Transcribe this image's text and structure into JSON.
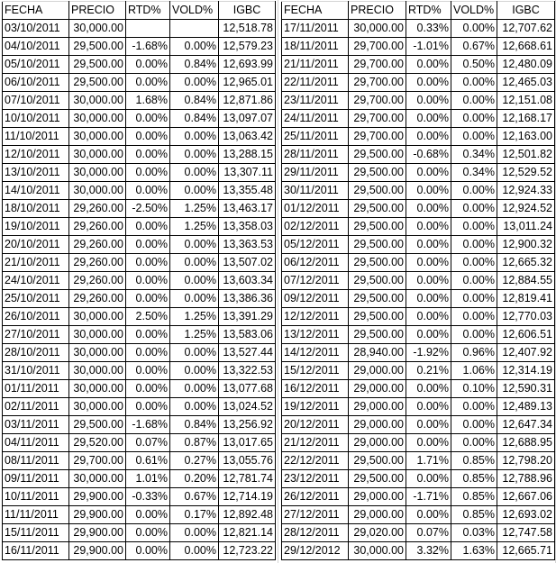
{
  "columns": [
    "FECHA",
    "PRECIO",
    "RTD%",
    "VOLD%",
    "IGBC"
  ],
  "tables": [
    {
      "rows": [
        [
          "03/10/2011",
          "30,000.00",
          "",
          "",
          "12,518.78"
        ],
        [
          "04/10/2011",
          "29,500.00",
          "-1.68%",
          "0.00%",
          "12,579.23"
        ],
        [
          "05/10/2011",
          "29,500.00",
          "0.00%",
          "0.84%",
          "12,693.99"
        ],
        [
          "06/10/2011",
          "29,500.00",
          "0.00%",
          "0.00%",
          "12,965.01"
        ],
        [
          "07/10/2011",
          "30,000.00",
          "1.68%",
          "0.84%",
          "12,871.86"
        ],
        [
          "10/10/2011",
          "30,000.00",
          "0.00%",
          "0.84%",
          "13,097.07"
        ],
        [
          "11/10/2011",
          "30,000.00",
          "0.00%",
          "0.00%",
          "13,063.42"
        ],
        [
          "12/10/2011",
          "30,000.00",
          "0.00%",
          "0.00%",
          "13,288.15"
        ],
        [
          "13/10/2011",
          "30,000.00",
          "0.00%",
          "0.00%",
          "13,307.11"
        ],
        [
          "14/10/2011",
          "30,000.00",
          "0.00%",
          "0.00%",
          "13,355.48"
        ],
        [
          "18/10/2011",
          "29,260.00",
          "-2.50%",
          "1.25%",
          "13,463.17"
        ],
        [
          "19/10/2011",
          "29,260.00",
          "0.00%",
          "1.25%",
          "13,358.03"
        ],
        [
          "20/10/2011",
          "29,260.00",
          "0.00%",
          "0.00%",
          "13,363.53"
        ],
        [
          "21/10/2011",
          "29,260.00",
          "0.00%",
          "0.00%",
          "13,507.02"
        ],
        [
          "24/10/2011",
          "29,260.00",
          "0.00%",
          "0.00%",
          "13,603.34"
        ],
        [
          "25/10/2011",
          "29,260.00",
          "0.00%",
          "0.00%",
          "13,386.36"
        ],
        [
          "26/10/2011",
          "30,000.00",
          "2.50%",
          "1.25%",
          "13,391.29"
        ],
        [
          "27/10/2011",
          "30,000.00",
          "0.00%",
          "1.25%",
          "13,583.06"
        ],
        [
          "28/10/2011",
          "30,000.00",
          "0.00%",
          "0.00%",
          "13,527.44"
        ],
        [
          "31/10/2011",
          "30,000.00",
          "0.00%",
          "0.00%",
          "13,322.53"
        ],
        [
          "01/11/2011",
          "30,000.00",
          "0.00%",
          "0.00%",
          "13,077.68"
        ],
        [
          "02/11/2011",
          "30,000.00",
          "0.00%",
          "0.00%",
          "13,024.52"
        ],
        [
          "03/11/2011",
          "29,500.00",
          "-1.68%",
          "0.84%",
          "13,256.92"
        ],
        [
          "04/11/2011",
          "29,520.00",
          "0.07%",
          "0.87%",
          "13,017.65"
        ],
        [
          "08/11/2011",
          "29,700.00",
          "0.61%",
          "0.27%",
          "13,055.76"
        ],
        [
          "09/11/2011",
          "30,000.00",
          "1.01%",
          "0.20%",
          "12,781.74"
        ],
        [
          "10/11/2011",
          "29,900.00",
          "-0.33%",
          "0.67%",
          "12,714.19"
        ],
        [
          "11/11/2011",
          "29,900.00",
          "0.00%",
          "0.17%",
          "12,892.48"
        ],
        [
          "15/11/2011",
          "29,900.00",
          "0.00%",
          "0.00%",
          "12,821.14"
        ],
        [
          "16/11/2011",
          "29,900.00",
          "0.00%",
          "0.00%",
          "12,723.22"
        ]
      ]
    },
    {
      "rows": [
        [
          "17/11/2011",
          "30,000.00",
          "0.33%",
          "0.00%",
          "12,707.62"
        ],
        [
          "18/11/2011",
          "29,700.00",
          "-1.01%",
          "0.67%",
          "12,668.61"
        ],
        [
          "21/11/2011",
          "29,700.00",
          "0.00%",
          "0.50%",
          "12,480.09"
        ],
        [
          "22/11/2011",
          "29,700.00",
          "0.00%",
          "0.00%",
          "12,465.03"
        ],
        [
          "23/11/2011",
          "29,700.00",
          "0.00%",
          "0.00%",
          "12,151.08"
        ],
        [
          "24/11/2011",
          "29,700.00",
          "0.00%",
          "0.00%",
          "12,168.17"
        ],
        [
          "25/11/2011",
          "29,700.00",
          "0.00%",
          "0.00%",
          "12,163.00"
        ],
        [
          "28/11/2011",
          "29,500.00",
          "-0.68%",
          "0.34%",
          "12,501.82"
        ],
        [
          "29/11/2011",
          "29,500.00",
          "0.00%",
          "0.34%",
          "12,529.52"
        ],
        [
          "30/11/2011",
          "29,500.00",
          "0.00%",
          "0.00%",
          "12,924.33"
        ],
        [
          "01/12/2011",
          "29,500.00",
          "0.00%",
          "0.00%",
          "12,924.52"
        ],
        [
          "02/12/2011",
          "29,500.00",
          "0.00%",
          "0.00%",
          "13,011.24"
        ],
        [
          "05/12/2011",
          "29,500.00",
          "0.00%",
          "0.00%",
          "12,900.32"
        ],
        [
          "06/12/2011",
          "29,500.00",
          "0.00%",
          "0.00%",
          "12,665.32"
        ],
        [
          "07/12/2011",
          "29,500.00",
          "0.00%",
          "0.00%",
          "12,884.55"
        ],
        [
          "09/12/2011",
          "29,500.00",
          "0.00%",
          "0.00%",
          "12,819.41"
        ],
        [
          "12/12/2011",
          "29,500.00",
          "0.00%",
          "0.00%",
          "12,770.03"
        ],
        [
          "13/12/2011",
          "29,500.00",
          "0.00%",
          "0.00%",
          "12,606.51"
        ],
        [
          "14/12/2011",
          "28,940.00",
          "-1.92%",
          "0.96%",
          "12,407.92"
        ],
        [
          "15/12/2011",
          "29,000.00",
          "0.21%",
          "1.06%",
          "12,314.19"
        ],
        [
          "16/12/2011",
          "29,000.00",
          "0.00%",
          "0.10%",
          "12,590.31"
        ],
        [
          "19/12/2011",
          "29,000.00",
          "0.00%",
          "0.00%",
          "12,489.13"
        ],
        [
          "20/12/2011",
          "29,000.00",
          "0.00%",
          "0.00%",
          "12,647.34"
        ],
        [
          "21/12/2011",
          "29,000.00",
          "0.00%",
          "0.00%",
          "12,688.95"
        ],
        [
          "22/12/2011",
          "29,500.00",
          "1.71%",
          "0.85%",
          "12,798.20"
        ],
        [
          "23/12/2011",
          "29,500.00",
          "0.00%",
          "0.85%",
          "12,788.96"
        ],
        [
          "26/12/2011",
          "29,000.00",
          "-1.71%",
          "0.85%",
          "12,667.06"
        ],
        [
          "27/12/2011",
          "29,000.00",
          "0.00%",
          "0.85%",
          "12,693.02"
        ],
        [
          "28/12/2011",
          "29,020.00",
          "0.07%",
          "0.03%",
          "12,747.58"
        ],
        [
          "29/12/2012",
          "30,000.00",
          "3.32%",
          "1.63%",
          "12,665.71"
        ]
      ]
    }
  ]
}
